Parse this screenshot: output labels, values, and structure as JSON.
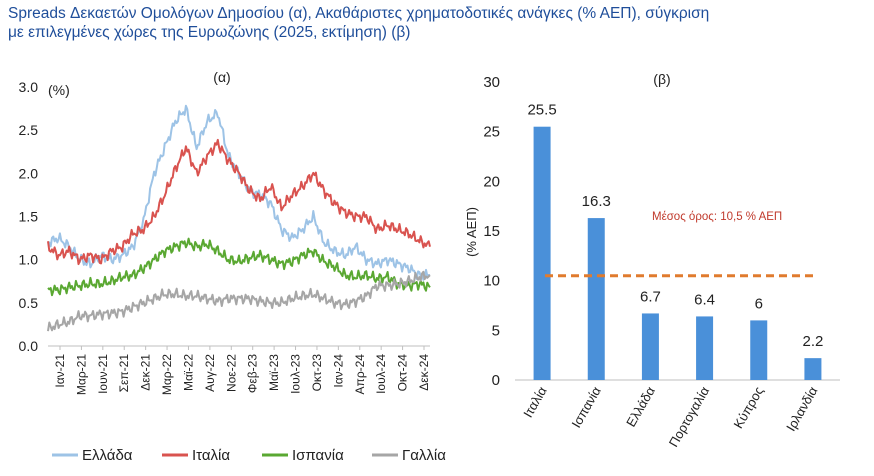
{
  "title": {
    "line1": "Spreads Δεκαετών Ομολόγων Δημοσίου (α), Ακαθάριστες χρηματοδοτικές ανάγκες (% ΑΕΠ), σύγκριση",
    "line2": "με επιλεγμένες χώρες της Ευρωζώνης (2025, εκτίμηση) (β)"
  },
  "colors": {
    "title": "#1f4e9a",
    "greece": "#9dc3e6",
    "italy": "#d9534f",
    "spain": "#5aa832",
    "france": "#a6a6a6",
    "bar": "#4a90d9",
    "avg": "#e07b2e"
  },
  "chart_data": [
    {
      "type": "line",
      "title": "(α)",
      "unit_label": "(%)",
      "ylim": [
        0,
        3.0
      ],
      "yticks": [
        "0.0",
        "0.5",
        "1.0",
        "1.5",
        "2.0",
        "2.5",
        "3.0"
      ],
      "xticks": [
        "Ιαν-21",
        "Μαρ-21",
        "Ιουν-21",
        "Σεπ-21",
        "Δεκ-21",
        "Μαρ-22",
        "Μαϊ-22",
        "Αυγ-22",
        "Νοε-22",
        "Φεβ-23",
        "Μαϊ-23",
        "Ιουλ-23",
        "Οκτ-23",
        "Ιαν-24",
        "Απρ-24",
        "Ιουλ-24",
        "Οκτ-24",
        "Δεκ-24"
      ],
      "series": [
        {
          "name": "Ελλάδα",
          "values": [
            1.2,
            1.25,
            1.15,
            1.0,
            0.95,
            1.05,
            1.0,
            1.05,
            1.15,
            1.45,
            2.0,
            2.3,
            2.6,
            2.75,
            2.3,
            2.6,
            2.7,
            2.2,
            2.0,
            1.8,
            1.75,
            1.65,
            1.35,
            1.25,
            1.35,
            1.5,
            1.2,
            1.1,
            1.05,
            1.15,
            1.0,
            0.95,
            1.0,
            0.95,
            0.9,
            0.82,
            0.82
          ]
        },
        {
          "name": "Ιταλία",
          "values": [
            1.15,
            1.05,
            1.1,
            1.0,
            1.05,
            1.0,
            1.1,
            1.15,
            1.3,
            1.35,
            1.5,
            1.75,
            2.05,
            2.3,
            2.0,
            2.2,
            2.35,
            2.15,
            2.0,
            1.8,
            1.7,
            1.85,
            1.6,
            1.75,
            1.85,
            2.0,
            1.8,
            1.65,
            1.55,
            1.5,
            1.5,
            1.35,
            1.4,
            1.35,
            1.3,
            1.22,
            1.15
          ]
        },
        {
          "name": "Ισπανία",
          "values": [
            0.65,
            0.65,
            0.68,
            0.7,
            0.72,
            0.72,
            0.75,
            0.8,
            0.82,
            0.9,
            1.0,
            1.1,
            1.15,
            1.2,
            1.15,
            1.18,
            1.1,
            1.0,
            0.98,
            1.02,
            1.05,
            1.0,
            0.95,
            0.98,
            1.05,
            1.1,
            0.98,
            0.92,
            0.82,
            0.8,
            0.82,
            0.78,
            0.8,
            0.72,
            0.7,
            0.72,
            0.68
          ]
        },
        {
          "name": "Γαλλία",
          "values": [
            0.2,
            0.25,
            0.28,
            0.35,
            0.35,
            0.37,
            0.38,
            0.4,
            0.45,
            0.5,
            0.55,
            0.6,
            0.6,
            0.58,
            0.58,
            0.55,
            0.52,
            0.55,
            0.55,
            0.55,
            0.52,
            0.5,
            0.5,
            0.55,
            0.58,
            0.6,
            0.55,
            0.5,
            0.48,
            0.52,
            0.58,
            0.7,
            0.7,
            0.72,
            0.75,
            0.8,
            0.82
          ]
        }
      ],
      "legend": [
        "Ελλάδα",
        "Ιταλία",
        "Ισπανία",
        "Γαλλία"
      ]
    },
    {
      "type": "bar",
      "title": "(β)",
      "ylabel": "(% ΑΕΠ)",
      "ylim": [
        0,
        30
      ],
      "yticks": [
        "0",
        "5",
        "10",
        "15",
        "20",
        "25",
        "30"
      ],
      "categories": [
        "Ιταλία",
        "Ισπανία",
        "Ελλάδα",
        "Πορτογαλία",
        "Κύπρος",
        "Ιρλανδία"
      ],
      "values": [
        25.5,
        16.3,
        6.7,
        6.4,
        6,
        2.2
      ],
      "value_labels": [
        "25.5",
        "16.3",
        "6.7",
        "6.4",
        "6",
        "2.2"
      ],
      "average": 10.5,
      "average_label": "Μέσος όρος: 10,5 % ΑΕΠ"
    }
  ]
}
